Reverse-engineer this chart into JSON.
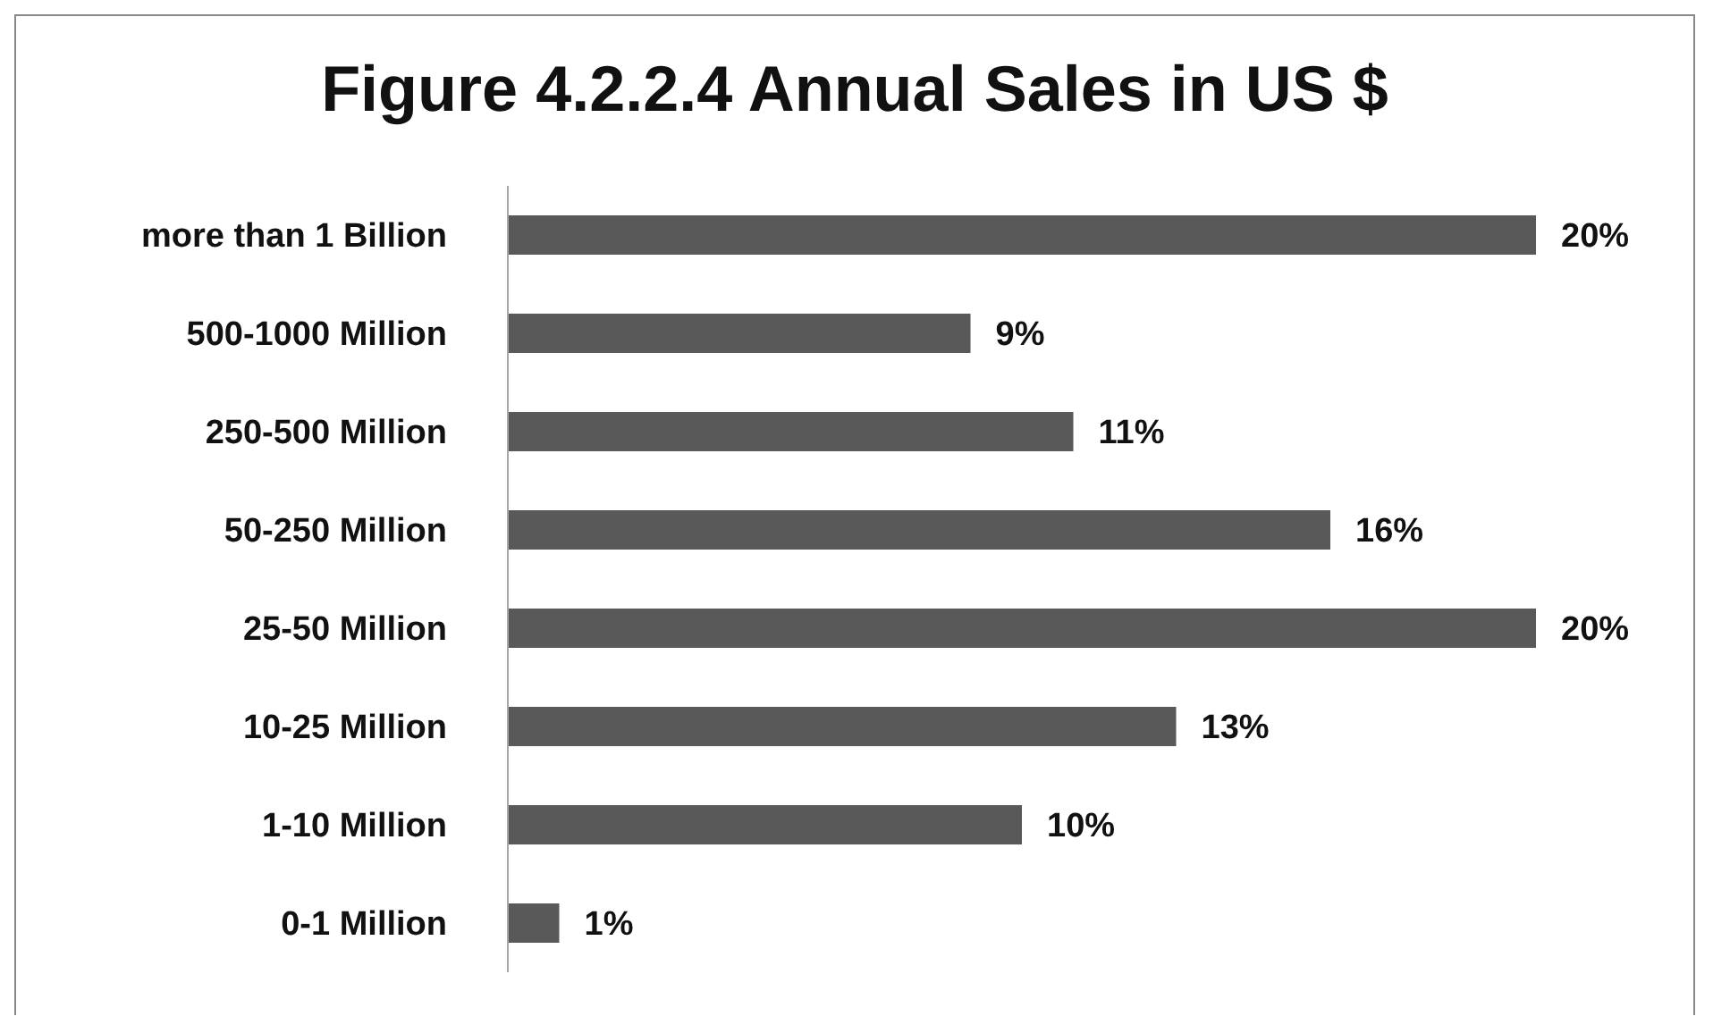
{
  "chart_data": {
    "type": "bar",
    "orientation": "horizontal",
    "title": "Figure 4.2.2.4 Annual Sales in US $",
    "categories": [
      "more than 1 Billion",
      "500-1000 Million",
      "250-500 Million",
      "50-250 Million",
      "25-50 Million",
      "10-25 Million",
      "1-10 Million",
      "0-1 Million"
    ],
    "values": [
      20,
      9,
      11,
      16,
      20,
      13,
      10,
      1
    ],
    "value_labels": [
      "20%",
      "9%",
      "11%",
      "16%",
      "20%",
      "13%",
      "10%",
      "1%"
    ],
    "color": "#595959",
    "grid": false,
    "legend": false
  }
}
